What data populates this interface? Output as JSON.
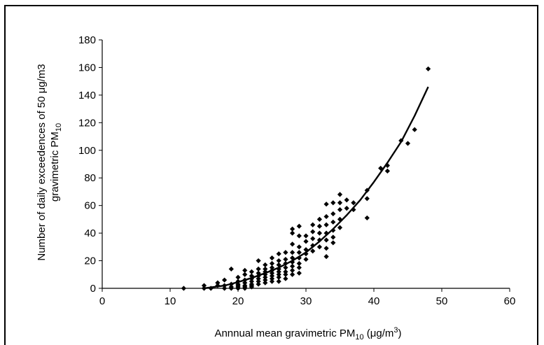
{
  "chart_data": {
    "type": "scatter",
    "title": "",
    "xlabel": "Annnual mean gravimetric PM₁₀ (μg/m³)",
    "xlabel_parts": {
      "pre": "Annnual mean gravimetric PM",
      "sub": "10",
      "mid": " (μg/m",
      "sup": "3",
      "post": ")"
    },
    "ylabel_line1": "Number of daily exceedences of 50 μg/m3",
    "ylabel_line2_parts": {
      "pre": "gravimetric PM",
      "sub": "10"
    },
    "xlim": [
      0,
      60
    ],
    "ylim": [
      0,
      180
    ],
    "xticks": [
      "0",
      "10",
      "20",
      "30",
      "40",
      "50",
      "60"
    ],
    "yticks": [
      "0",
      "20",
      "40",
      "60",
      "80",
      "100",
      "120",
      "140",
      "160",
      "180"
    ],
    "grid": false,
    "legend": "none",
    "marker": "diamond",
    "color": "#000000",
    "points": [
      [
        12,
        0
      ],
      [
        15,
        2
      ],
      [
        15,
        0
      ],
      [
        16,
        0
      ],
      [
        17,
        4
      ],
      [
        17,
        2
      ],
      [
        18,
        6
      ],
      [
        18,
        2
      ],
      [
        18,
        0
      ],
      [
        19,
        14
      ],
      [
        19,
        3
      ],
      [
        19,
        1
      ],
      [
        19,
        0
      ],
      [
        20,
        8
      ],
      [
        20,
        5
      ],
      [
        20,
        3
      ],
      [
        20,
        2
      ],
      [
        20,
        1
      ],
      [
        20,
        0
      ],
      [
        21,
        13
      ],
      [
        21,
        10
      ],
      [
        21,
        6
      ],
      [
        21,
        4
      ],
      [
        21,
        2
      ],
      [
        21,
        1
      ],
      [
        21,
        0
      ],
      [
        22,
        12
      ],
      [
        22,
        9
      ],
      [
        22,
        7
      ],
      [
        22,
        5
      ],
      [
        22,
        3
      ],
      [
        22,
        2
      ],
      [
        22,
        1
      ],
      [
        23,
        20
      ],
      [
        23,
        14
      ],
      [
        23,
        11
      ],
      [
        23,
        9
      ],
      [
        23,
        7
      ],
      [
        23,
        5
      ],
      [
        23,
        3
      ],
      [
        24,
        17
      ],
      [
        24,
        14
      ],
      [
        24,
        12
      ],
      [
        24,
        10
      ],
      [
        24,
        8
      ],
      [
        24,
        6
      ],
      [
        24,
        4
      ],
      [
        25,
        22
      ],
      [
        25,
        18
      ],
      [
        25,
        15
      ],
      [
        25,
        13
      ],
      [
        25,
        11
      ],
      [
        25,
        9
      ],
      [
        25,
        7
      ],
      [
        25,
        5
      ],
      [
        26,
        25
      ],
      [
        26,
        20
      ],
      [
        26,
        17
      ],
      [
        26,
        14
      ],
      [
        26,
        12
      ],
      [
        26,
        10
      ],
      [
        26,
        8
      ],
      [
        26,
        5
      ],
      [
        27,
        26
      ],
      [
        27,
        21
      ],
      [
        27,
        18
      ],
      [
        27,
        15
      ],
      [
        27,
        12
      ],
      [
        27,
        10
      ],
      [
        27,
        7
      ],
      [
        28,
        43
      ],
      [
        28,
        40
      ],
      [
        28,
        32
      ],
      [
        28,
        26
      ],
      [
        28,
        22
      ],
      [
        28,
        19
      ],
      [
        28,
        16
      ],
      [
        28,
        13
      ],
      [
        28,
        10
      ],
      [
        29,
        45
      ],
      [
        29,
        38
      ],
      [
        29,
        30
      ],
      [
        29,
        26
      ],
      [
        29,
        22
      ],
      [
        29,
        18
      ],
      [
        29,
        15
      ],
      [
        29,
        11
      ],
      [
        30,
        38
      ],
      [
        30,
        34
      ],
      [
        30,
        28
      ],
      [
        30,
        25
      ],
      [
        30,
        21
      ],
      [
        31,
        46
      ],
      [
        31,
        41
      ],
      [
        31,
        36
      ],
      [
        31,
        31
      ],
      [
        31,
        27
      ],
      [
        32,
        50
      ],
      [
        32,
        45
      ],
      [
        32,
        40
      ],
      [
        32,
        35
      ],
      [
        32,
        30
      ],
      [
        33,
        61
      ],
      [
        33,
        52
      ],
      [
        33,
        46
      ],
      [
        33,
        40
      ],
      [
        33,
        35
      ],
      [
        33,
        29
      ],
      [
        33,
        23
      ],
      [
        34,
        62
      ],
      [
        34,
        54
      ],
      [
        34,
        48
      ],
      [
        34,
        42
      ],
      [
        34,
        37
      ],
      [
        34,
        33
      ],
      [
        35,
        68
      ],
      [
        35,
        62
      ],
      [
        35,
        57
      ],
      [
        35,
        50
      ],
      [
        35,
        44
      ],
      [
        36,
        64
      ],
      [
        36,
        58
      ],
      [
        37,
        62
      ],
      [
        37,
        57
      ],
      [
        39,
        71
      ],
      [
        39,
        65
      ],
      [
        39,
        51
      ],
      [
        41,
        87
      ],
      [
        42,
        89
      ],
      [
        42,
        85
      ],
      [
        44,
        107
      ],
      [
        45,
        105
      ],
      [
        46,
        115
      ],
      [
        48,
        159
      ]
    ],
    "fit_line": {
      "type": "power",
      "points": [
        [
          15,
          0
        ],
        [
          18,
          2
        ],
        [
          20,
          4.5
        ],
        [
          22,
          7.5
        ],
        [
          24,
          11
        ],
        [
          26,
          15
        ],
        [
          28,
          20
        ],
        [
          30,
          26
        ],
        [
          32,
          34
        ],
        [
          34,
          43
        ],
        [
          36,
          53
        ],
        [
          38,
          64
        ],
        [
          40,
          77
        ],
        [
          42,
          91
        ],
        [
          44,
          106
        ],
        [
          46,
          125
        ],
        [
          48,
          146
        ]
      ]
    }
  }
}
